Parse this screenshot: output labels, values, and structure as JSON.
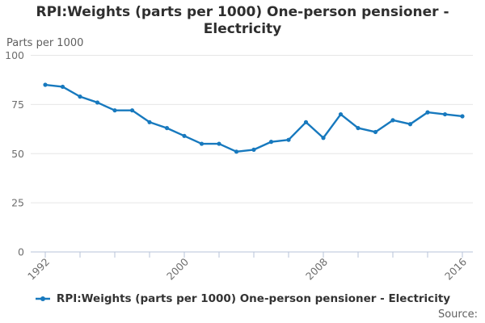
{
  "page": {
    "title": "RPI:Weights (parts per 1000) One-person pensioner - Electricity",
    "y_axis_unit": "Parts per 1000",
    "legend_label": "RPI:Weights (parts per 1000) One-person pensioner - Electricity",
    "source_label": "Source:"
  },
  "colors": {
    "line": "#1779be",
    "grid": "#e6e6e6",
    "axis": "#b7c3d9",
    "title_text": "#2e2e2e",
    "tick_text": "#6e6e6e",
    "muted_text": "#5f5f5f"
  },
  "chart_data": {
    "type": "line",
    "title": "RPI:Weights (parts per 1000) One-person pensioner - Electricity",
    "ylabel": "Parts per 1000",
    "series_name": "RPI:Weights (parts per 1000) One-person pensioner - Electricity",
    "x": [
      1992,
      1993,
      1994,
      1995,
      1996,
      1997,
      1998,
      1999,
      2000,
      2001,
      2002,
      2003,
      2004,
      2005,
      2006,
      2007,
      2008,
      2009,
      2010,
      2011,
      2012,
      2013,
      2014,
      2015,
      2016
    ],
    "values": [
      85,
      84,
      79,
      76,
      72,
      72,
      66,
      63,
      59,
      55,
      55,
      51,
      52,
      56,
      57,
      66,
      58,
      70,
      63,
      61,
      67,
      65,
      71,
      70,
      69
    ],
    "ylim": [
      0,
      100
    ],
    "yticks": [
      0,
      25,
      50,
      75,
      100
    ],
    "xtick_minor_step": 2,
    "xtick_labels": [
      1992,
      2000,
      2008,
      2016
    ],
    "grid": "horizontal",
    "legend_position": "bottom",
    "marker": "circle"
  }
}
